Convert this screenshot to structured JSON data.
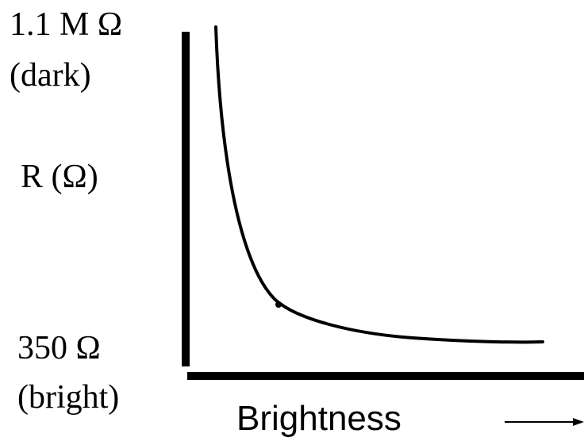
{
  "labels": {
    "top_value": "1.1 M Ω",
    "top_state": "(dark)",
    "y_axis": "R (Ω)",
    "bottom_value": "350 Ω",
    "bottom_state": "(bright)",
    "x_axis": "Brightness"
  },
  "colors": {
    "ink": "#000000",
    "background": "#ffffff"
  }
}
